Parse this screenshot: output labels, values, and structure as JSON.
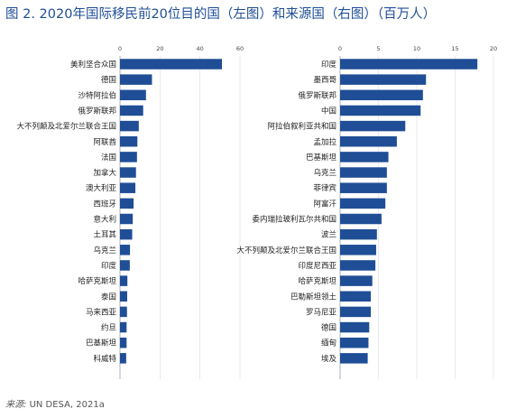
{
  "title": "图 2. 2020年国际移民前20位目的国（左图）和来源国（右图）（百万人）",
  "source": {
    "label": "来源:",
    "text": "UN DESA, 2021a"
  },
  "chart_data": [
    {
      "type": "bar",
      "orientation": "horizontal",
      "title": "",
      "xlim": [
        0,
        60
      ],
      "xticks": [
        "0",
        "20",
        "40",
        "60"
      ],
      "bar_color": "#1f4e96",
      "categories": [
        "美利坚合众国",
        "德国",
        "沙特阿拉伯",
        "俄罗斯联邦",
        "大不列颠及北爱尔兰联合王国",
        "阿联酋",
        "法国",
        "加拿大",
        "澳大利亚",
        "西班牙",
        "意大利",
        "土耳其",
        "乌克兰",
        "印度",
        "哈萨克斯坦",
        "泰国",
        "马来西亚",
        "约旦",
        "巴基斯坦",
        "科威特"
      ],
      "values": [
        51,
        16,
        13,
        11.6,
        9.4,
        8.7,
        8.5,
        8.0,
        7.7,
        6.8,
        6.4,
        6.1,
        5.0,
        4.9,
        3.7,
        3.6,
        3.5,
        3.3,
        3.3,
        3.1
      ]
    },
    {
      "type": "bar",
      "orientation": "horizontal",
      "title": "",
      "xlim": [
        0,
        20
      ],
      "xticks": [
        "0",
        "5",
        "10",
        "15",
        "20"
      ],
      "bar_color": "#1f4e96",
      "categories": [
        "印度",
        "墨西哥",
        "俄罗斯联邦",
        "中国",
        "阿拉伯叙利亚共和国",
        "孟加拉",
        "巴基斯坦",
        "乌克兰",
        "菲律宾",
        "阿富汗",
        "委内瑞拉玻利瓦尔共和国",
        "波兰",
        "大不列颠及北爱尔兰联合王国",
        "印度尼西亚",
        "哈萨克斯坦",
        "巴勒斯坦领土",
        "罗马尼亚",
        "德国",
        "缅甸",
        "埃及"
      ],
      "values": [
        17.9,
        11.2,
        10.8,
        10.5,
        8.5,
        7.4,
        6.3,
        6.1,
        6.1,
        5.9,
        5.4,
        4.8,
        4.7,
        4.6,
        4.2,
        4.0,
        4.0,
        3.8,
        3.7,
        3.6
      ]
    }
  ]
}
